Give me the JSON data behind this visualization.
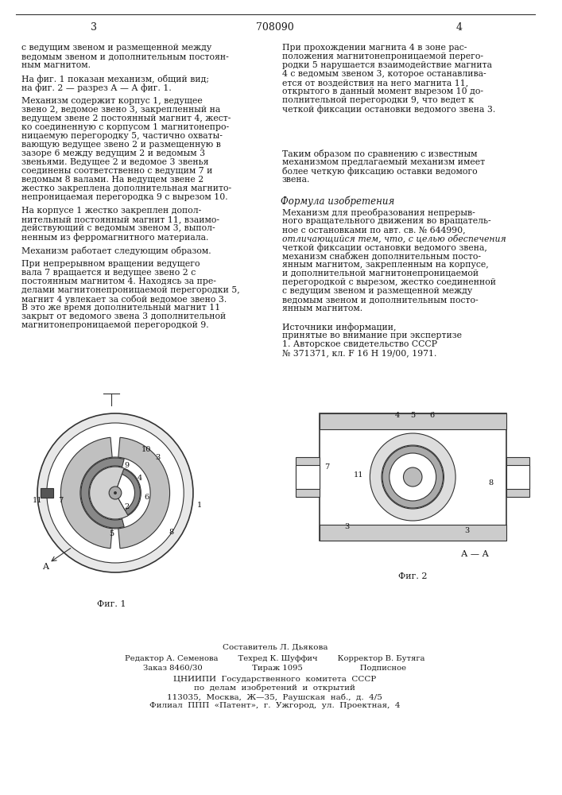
{
  "patent_number": "708090",
  "page_left": "3",
  "page_right": "4",
  "bg_color": "#ffffff",
  "text_color": "#1a1a1a",
  "top_text_left": [
    "с ведущим звеном и размещенной между",
    "ведомым звеном и дополнительным постоян-",
    "ным магнитом."
  ],
  "top_text_right": [
    "При прохождении магнита 4 в зоне рас-",
    "положения магнитонепроницаемой перего-",
    "родки 5 нарушается взаимодействие магнита",
    "4 с ведомым звеном 3, которое останавлива-",
    "ется от воздействия на него магнита 11,",
    "открытого в данный момент вырезом 10 до-",
    "полнительной перегородки 9, что ведет к",
    "четкой фиксации остановки ведомого звена 3."
  ],
  "middle_text_left": [
    "На фиг. 1 показан механизм, общий вид;",
    "на фиг. 2 — разрез А — А фиг. 1."
  ],
  "body_text_left": [
    "Механизм содержит корпус 1, ведущее",
    "звено 2, ведомое звено 3, закрепленный на",
    "ведущем звене 2 постоянный магнит 4, жест-",
    "ко соединенную с корпусом 1 магнитонепро-",
    "ницаемую перегородку 5, частично охваты-",
    "вающую ведущее звено 2 и размещенную в",
    "зазоре 6 между ведущим 2 и ведомым 3",
    "звеньями. Ведущее 2 и ведомое 3 звенья",
    "соединены соответственно с ведущим 7 и",
    "ведомым 8 валами. На ведущем звене 2",
    "жестко закреплена дополнительная магнито-",
    "непроницаемая перегородка 9 с вырезом 10."
  ],
  "body_text_right_middle": [
    "Таким образом по сравнению с известным",
    "механизмом предлагаемый механизм имеет",
    "более четкую фиксацию оставки ведомого",
    "звена."
  ],
  "formula_title": "Формула изобретения",
  "formula_text": [
    "Механизм для преобразования непрерыв-",
    "ного вращательного движения во вращатель-",
    "ное с остановками по авт. св. № 644990,",
    "отличающийся тем, что, с целью обеспечения",
    "четкой фиксации остановки ведомого звена,",
    "механизм снабжен дополнительным посто-",
    "янным магнитом, закрепленным на корпусе,",
    "и дополнительной магнитонепроницаемой",
    "перегородкой с вырезом, жестко соединенной",
    "с ведущим звеном и размещенной между",
    "ведомым звеном и дополнительным посто-",
    "янным магнитом."
  ],
  "sources_title": "Источники информации,",
  "sources_text": [
    "принятые во внимание при экспертизе",
    "1. Авторское свидетельство СССР",
    "№ 371371, кл. F 16 Н 19/00, 1971."
  ],
  "body_text_left2": [
    "На корпусе 1 жестко закреплен допол-",
    "нительный постоянный магнит 11, взаимо-",
    "действующий с ведомым звеном 3, выпол-",
    "ненным из ферромагнитного материала."
  ],
  "body_text_left3": [
    "Механизм работает следующим образом."
  ],
  "body_text_left4": [
    "При непрерывном вращении ведущего",
    "вала 7 вращается и ведущее звено 2 с",
    "постоянным магнитом 4. Находясь за пре-",
    "делами магнитонепроницаемой перегородки 5,",
    "магнит 4 увлекает за собой ведомое звено 3.",
    "В это же время дополнительный магнит 11",
    "закрыт от ведомого звена 3 дополнительной",
    "магнитонепроницаемой перегородкой 9."
  ],
  "fig1_label": "Фиг. 1",
  "fig2_label": "Фиг. 2",
  "fig2_section_label": "А — А",
  "editor_line1": "Редактор А. Семенова        Техред К. Шуффич        Корректор В. Бутяга",
  "editor_line2": "Заказ 8460/30                    Тираж 1095                       Подписное",
  "center_author": "Составитель Л. Дьякова",
  "institute_lines": [
    "ЦНИИПИ  Государственного  комитета  СССР",
    "по  делам  изобретений  и  открытий",
    "113035,  Москва,  Ж—35,  Раушская  наб.,  д.  4/5",
    "Филиал  ППП  «Патент»,  г.  Ужгород,  ул.  Проектная,  4"
  ]
}
